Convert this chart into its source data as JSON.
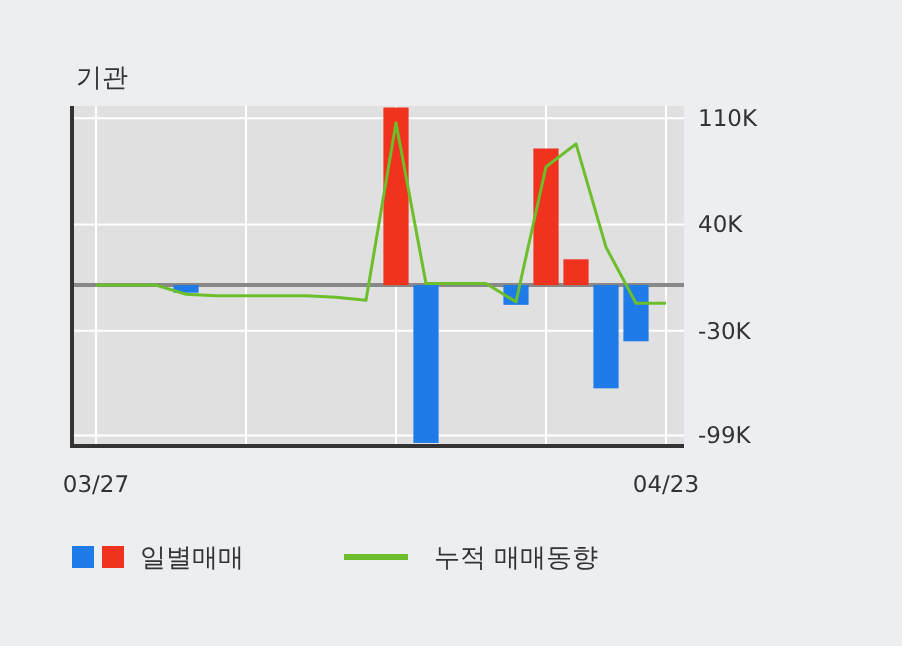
{
  "chart_data": {
    "type": "bar",
    "title": "기관",
    "categories": [
      "03/27",
      null,
      null,
      null,
      null,
      null,
      null,
      null,
      null,
      null,
      null,
      null,
      null,
      null,
      null,
      null,
      null,
      null,
      null,
      "04/23"
    ],
    "series": [
      {
        "name": "일별매매",
        "colors": [
          "#1e7be8",
          "#1e7be8",
          "#1e7be8",
          "#1e7be8",
          "#1e7be8",
          "#1e7be8",
          "#1e7be8",
          "#1e7be8",
          "#1e7be8",
          "#1e7be8",
          "#f0321e",
          "#1e7be8",
          "#1e7be8",
          "#1e7be8",
          "#1e7be8",
          "#f0321e",
          "#f0321e",
          "#1e7be8",
          "#1e7be8",
          "#1e7be8"
        ],
        "values": [
          0,
          0,
          0,
          -5000,
          0,
          0,
          0,
          0,
          0,
          0,
          117000,
          -104000,
          0,
          0,
          -13000,
          90000,
          17000,
          -68000,
          -37000,
          0
        ]
      },
      {
        "name": "누적 매매동향",
        "type": "line",
        "color": "#6cbf2a",
        "values": [
          0,
          0,
          0,
          -6000,
          -7000,
          -7000,
          -7000,
          -7000,
          -8000,
          -10000,
          107000,
          1000,
          1000,
          1000,
          -11000,
          78000,
          93000,
          25000,
          -12000,
          -12000
        ]
      }
    ],
    "ylim": [
      -106000,
      118000
    ],
    "yticks": [
      {
        "value": 110000,
        "label": "110K"
      },
      {
        "value": 40000,
        "label": "40K"
      },
      {
        "value": -30000,
        "label": "-30K"
      },
      {
        "value": -99000,
        "label": "-99K"
      }
    ],
    "ref_lines": [
      {
        "axis": "y",
        "value": 0,
        "label": null,
        "color": "#888888"
      }
    ],
    "grid": true,
    "legend": "bottom"
  }
}
